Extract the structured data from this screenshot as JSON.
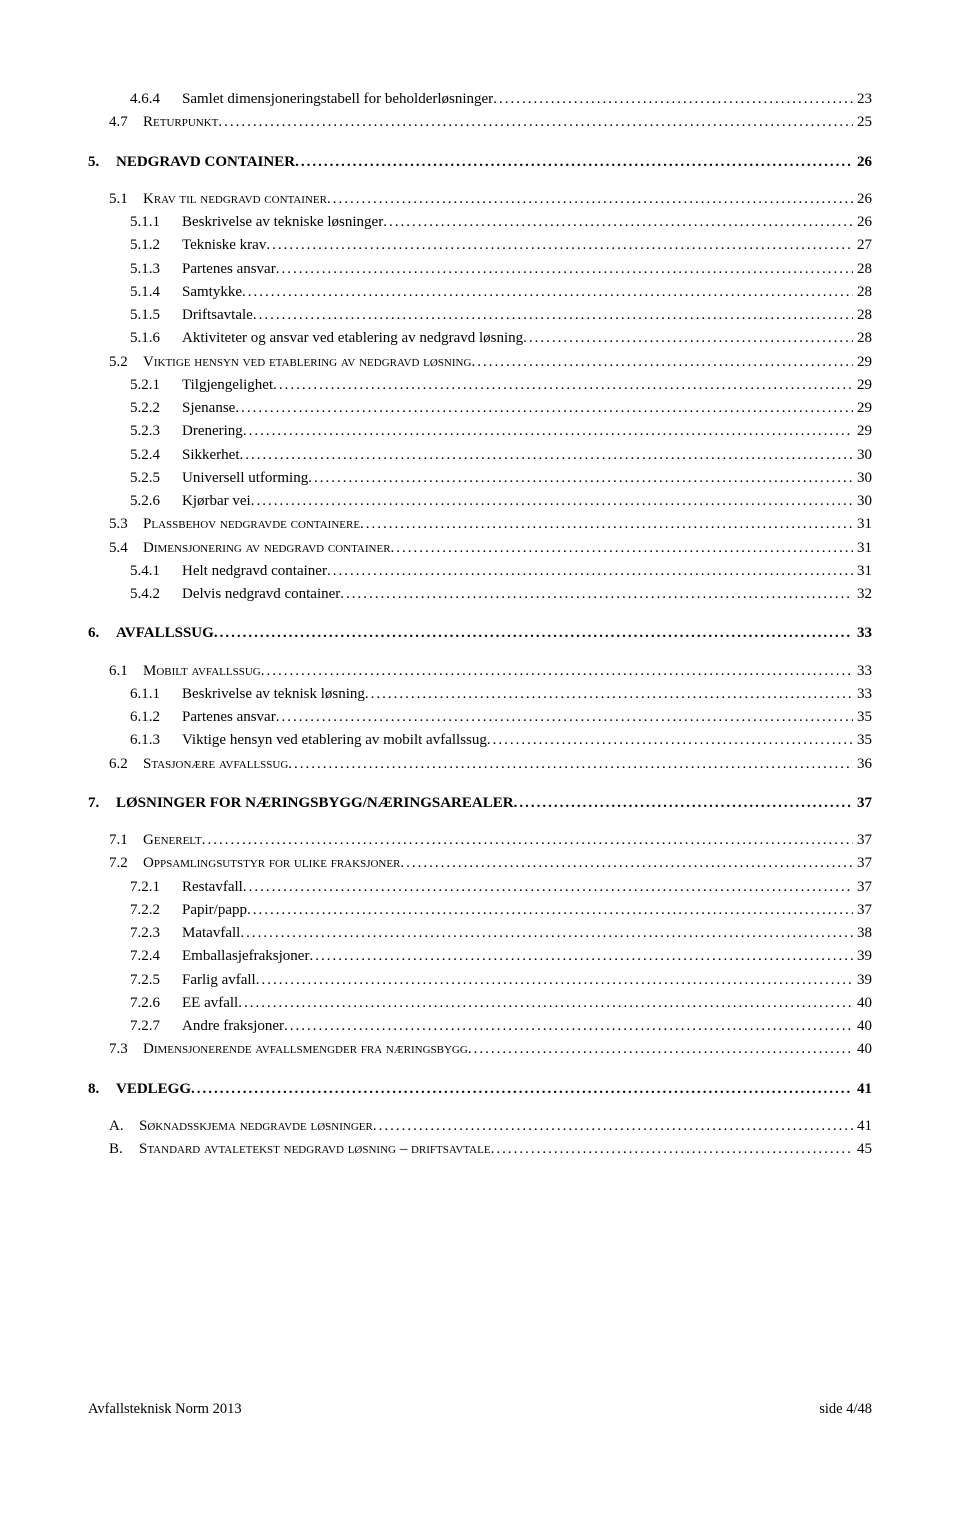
{
  "toc": [
    {
      "cls": "lvl-3",
      "num": "4.6.4",
      "title": "Samlet dimensjoneringstabell for beholderløsninger",
      "page": "23"
    },
    {
      "cls": "lvl-2-sc",
      "num": "4.7",
      "title": "R",
      "sc": "eturpunkt",
      "page": "25"
    },
    {
      "cls": "lvl-1",
      "num": "5.",
      "title": "NEDGRAVD CONTAINER",
      "page": "26"
    },
    {
      "cls": "lvl-2-sc",
      "num": "5.1",
      "title": "K",
      "sc": "rav til nedgravd container",
      "page": "26"
    },
    {
      "cls": "lvl-3",
      "num": "5.1.1",
      "title": "Beskrivelse av tekniske løsninger",
      "page": "26"
    },
    {
      "cls": "lvl-3",
      "num": "5.1.2",
      "title": "Tekniske krav",
      "page": "27"
    },
    {
      "cls": "lvl-3",
      "num": "5.1.3",
      "title": "Partenes ansvar",
      "page": "28"
    },
    {
      "cls": "lvl-3",
      "num": "5.1.4",
      "title": "Samtykke",
      "page": "28"
    },
    {
      "cls": "lvl-3",
      "num": "5.1.5",
      "title": "Driftsavtale",
      "page": "28"
    },
    {
      "cls": "lvl-3",
      "num": "5.1.6",
      "title": "Aktiviteter og ansvar ved etablering av nedgravd løsning",
      "page": "28"
    },
    {
      "cls": "lvl-2-sc",
      "num": "5.2",
      "title": "V",
      "sc": "iktige hensyn ved etablering av nedgravd løsning",
      "page": "29"
    },
    {
      "cls": "lvl-3",
      "num": "5.2.1",
      "title": "Tilgjengelighet",
      "page": "29"
    },
    {
      "cls": "lvl-3",
      "num": "5.2.2",
      "title": "Sjenanse",
      "page": "29"
    },
    {
      "cls": "lvl-3",
      "num": "5.2.3",
      "title": "Drenering",
      "page": "29"
    },
    {
      "cls": "lvl-3",
      "num": "5.2.4",
      "title": "Sikkerhet",
      "page": "30"
    },
    {
      "cls": "lvl-3",
      "num": "5.2.5",
      "title": "Universell utforming",
      "page": "30"
    },
    {
      "cls": "lvl-3",
      "num": "5.2.6",
      "title": "Kjørbar vei",
      "page": "30"
    },
    {
      "cls": "lvl-2-sc",
      "num": "5.3",
      "title": "P",
      "sc": "lassbehov nedgravde containere",
      "page": "31"
    },
    {
      "cls": "lvl-2-sc",
      "num": "5.4",
      "title": "D",
      "sc": "imensjonering av nedgravd container",
      "page": "31"
    },
    {
      "cls": "lvl-3",
      "num": "5.4.1",
      "title": "Helt nedgravd container",
      "page": "31"
    },
    {
      "cls": "lvl-3",
      "num": "5.4.2",
      "title": "Delvis nedgravd container",
      "page": "32"
    },
    {
      "cls": "lvl-1",
      "num": "6.",
      "title": "AVFALLSSUG",
      "page": "33"
    },
    {
      "cls": "lvl-2-sc",
      "num": "6.1",
      "title": "M",
      "sc": "obilt avfallssug",
      "page": "33"
    },
    {
      "cls": "lvl-3",
      "num": "6.1.1",
      "title": "Beskrivelse av teknisk løsning",
      "page": "33"
    },
    {
      "cls": "lvl-3",
      "num": "6.1.2",
      "title": "Partenes ansvar",
      "page": "35"
    },
    {
      "cls": "lvl-3",
      "num": "6.1.3",
      "title": "Viktige hensyn ved etablering av mobilt avfallssug",
      "page": "35"
    },
    {
      "cls": "lvl-2-sc",
      "num": "6.2",
      "title": "S",
      "sc": "tasjonære avfallssug",
      "page": "36"
    },
    {
      "cls": "lvl-1",
      "num": "7.",
      "title": "LØSNINGER FOR NÆRINGSBYGG/NÆRINGSAREALER",
      "page": "37"
    },
    {
      "cls": "lvl-2-sc",
      "num": "7.1",
      "title": "G",
      "sc": "enerelt",
      "page": "37"
    },
    {
      "cls": "lvl-2-sc",
      "num": "7.2",
      "title": "O",
      "sc": "ppsamlingsutstyr for ulike fraksjoner",
      "page": "37"
    },
    {
      "cls": "lvl-3",
      "num": "7.2.1",
      "title": "Restavfall",
      "page": "37"
    },
    {
      "cls": "lvl-3",
      "num": "7.2.2",
      "title": "Papir/papp",
      "page": "37"
    },
    {
      "cls": "lvl-3",
      "num": "7.2.3",
      "title": "Matavfall",
      "page": "38"
    },
    {
      "cls": "lvl-3",
      "num": "7.2.4",
      "title": "Emballasjefraksjoner",
      "page": "39"
    },
    {
      "cls": "lvl-3",
      "num": "7.2.5",
      "title": "Farlig avfall",
      "page": "39"
    },
    {
      "cls": "lvl-3",
      "num": "7.2.6",
      "title": "EE avfall",
      "page": "40"
    },
    {
      "cls": "lvl-3",
      "num": "7.2.7",
      "title": "Andre fraksjoner",
      "page": "40"
    },
    {
      "cls": "lvl-2-sc",
      "num": "7.3",
      "title": "D",
      "sc": "imensjonerende avfallsmengder fra næringsbygg",
      "page": "40"
    },
    {
      "cls": "lvl-1",
      "num": "8.",
      "title": "VEDLEGG",
      "page": "41"
    },
    {
      "cls": "lvl-app",
      "num": "A.",
      "title": "S",
      "sc": "øknadsskjema nedgravde løsninger",
      "page": "41"
    },
    {
      "cls": "lvl-app",
      "num": "B.",
      "title": "S",
      "sc": "tandard avtaletekst nedgravd løsning – driftsavtale",
      "page": "45"
    }
  ],
  "footer_left": "Avfallsteknisk Norm 2013",
  "footer_right": "side 4/48"
}
